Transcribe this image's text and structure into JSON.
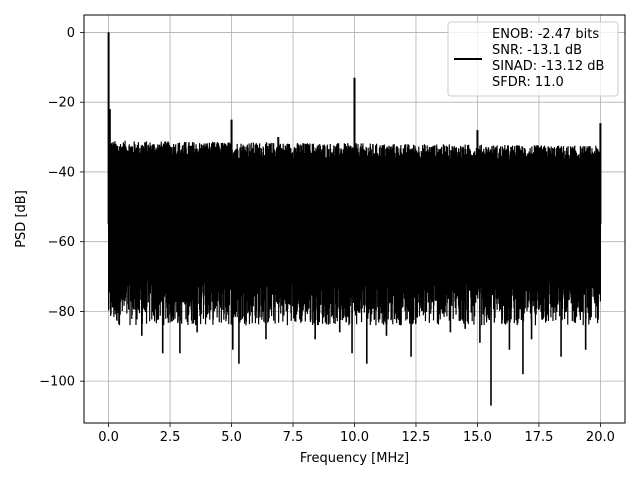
{
  "chart_data": {
    "type": "line",
    "title": "",
    "xlabel": "Frequency [MHz]",
    "ylabel": "PSD [dB]",
    "xlim": [
      -1.0,
      21.0
    ],
    "ylim": [
      -112,
      5
    ],
    "x_ticks": [
      0.0,
      2.5,
      5.0,
      7.5,
      10.0,
      12.5,
      15.0,
      17.5,
      20.0
    ],
    "x_tick_labels": [
      "0.0",
      "2.5",
      "5.0",
      "7.5",
      "10.0",
      "12.5",
      "15.0",
      "17.5",
      "20.0"
    ],
    "y_ticks": [
      0,
      -20,
      -40,
      -60,
      -80,
      -100
    ],
    "y_tick_labels": [
      "0",
      "−20",
      "−40",
      "−60",
      "−80",
      "−100"
    ],
    "grid": true,
    "legend_position": "upper right",
    "series": [
      {
        "color": "#000000",
        "noise_floor_top_range": [
          -36,
          -31
        ],
        "noise_floor_bottom_range": [
          -84,
          -70
        ],
        "peaks": [
          {
            "x": 0.0,
            "y": 0.0
          },
          {
            "x": 0.05,
            "y": -22
          },
          {
            "x": 5.0,
            "y": -25
          },
          {
            "x": 6.9,
            "y": -30
          },
          {
            "x": 10.0,
            "y": -13
          },
          {
            "x": 15.0,
            "y": -28
          },
          {
            "x": 20.0,
            "y": -26
          }
        ],
        "dips": [
          {
            "x": 1.35,
            "y": -87
          },
          {
            "x": 2.2,
            "y": -92
          },
          {
            "x": 2.9,
            "y": -92
          },
          {
            "x": 3.6,
            "y": -86
          },
          {
            "x": 5.05,
            "y": -91
          },
          {
            "x": 5.3,
            "y": -95
          },
          {
            "x": 6.4,
            "y": -88
          },
          {
            "x": 8.4,
            "y": -88
          },
          {
            "x": 9.4,
            "y": -86
          },
          {
            "x": 9.9,
            "y": -92
          },
          {
            "x": 10.5,
            "y": -95
          },
          {
            "x": 11.3,
            "y": -87
          },
          {
            "x": 12.3,
            "y": -93
          },
          {
            "x": 13.9,
            "y": -86
          },
          {
            "x": 14.5,
            "y": -85
          },
          {
            "x": 15.1,
            "y": -89
          },
          {
            "x": 15.55,
            "y": -107
          },
          {
            "x": 16.3,
            "y": -91
          },
          {
            "x": 16.85,
            "y": -98
          },
          {
            "x": 17.2,
            "y": -88
          },
          {
            "x": 18.4,
            "y": -93
          },
          {
            "x": 19.4,
            "y": -91
          }
        ]
      }
    ],
    "legend": {
      "lines": [
        "ENOB: -2.47 bits",
        "SNR: -13.1 dB",
        "SINAD: -13.12 dB",
        "SFDR: 11.0"
      ]
    }
  }
}
